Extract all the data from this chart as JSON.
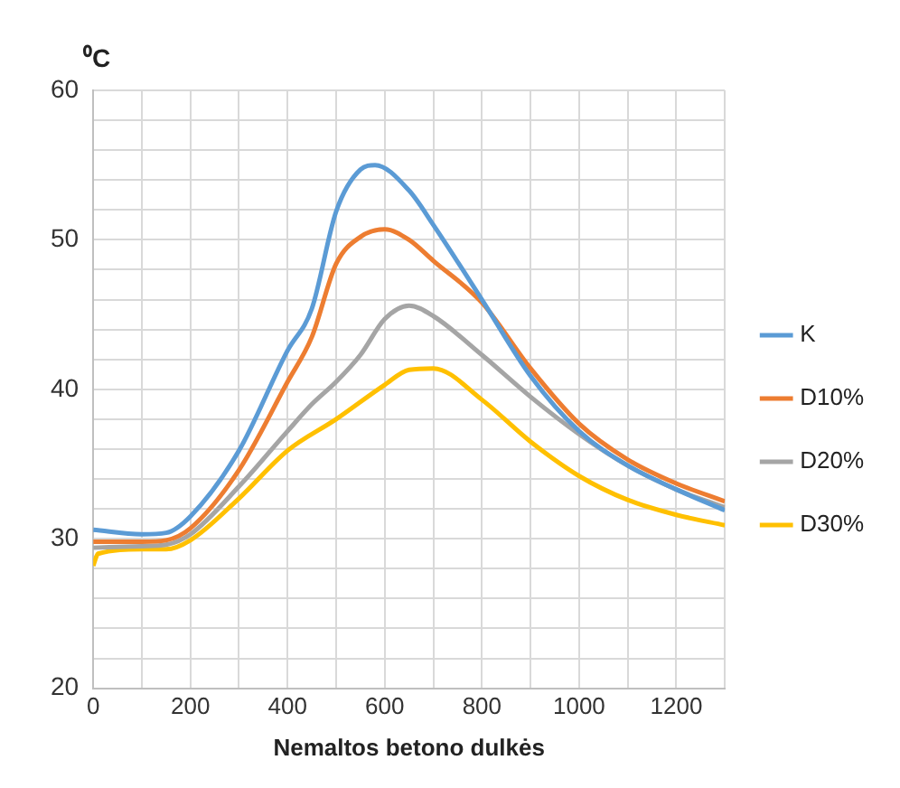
{
  "chart_data": {
    "type": "line",
    "xlabel": "Nemaltos betono dulkės",
    "ylabel": "⁰C",
    "x": [
      0,
      100,
      150,
      200,
      300,
      400,
      450,
      500,
      550,
      600,
      650,
      700,
      800,
      900,
      1000,
      1100,
      1200,
      1300
    ],
    "series": [
      {
        "name": "K",
        "color": "#5b9bd5",
        "x": [
          0,
          100,
          150,
          200,
          300,
          400,
          450,
          500,
          550,
          580,
          650,
          700,
          800,
          900,
          1000,
          1100,
          1200,
          1300
        ],
        "values": [
          30.6,
          30.3,
          30.4,
          31.5,
          35.9,
          42.6,
          45.4,
          51.9,
          54.7,
          55.0,
          53.3,
          51.0,
          46.0,
          40.9,
          37.2,
          34.9,
          33.3,
          31.9
        ]
      },
      {
        "name": "D10%",
        "color": "#ed7d31",
        "values": [
          29.8,
          29.8,
          29.9,
          30.7,
          34.6,
          40.5,
          43.5,
          48.4,
          50.2,
          50.7,
          50.0,
          48.6,
          45.8,
          41.4,
          37.7,
          35.3,
          33.7,
          32.5
        ]
      },
      {
        "name": "D20%",
        "color": "#a5a5a5",
        "values": [
          29.4,
          29.5,
          29.6,
          30.3,
          33.5,
          37.2,
          39.0,
          40.5,
          42.3,
          44.7,
          45.6,
          44.9,
          42.3,
          39.5,
          37.0,
          34.9,
          33.3,
          32.1
        ]
      },
      {
        "name": "D30%",
        "color": "#ffc000",
        "x": [
          0,
          10,
          100,
          150,
          200,
          300,
          400,
          500,
          600,
          650,
          700,
          800,
          900,
          1000,
          1100,
          1200,
          1300
        ],
        "values": [
          28.2,
          29.0,
          29.3,
          29.3,
          29.9,
          32.7,
          35.9,
          38.0,
          40.3,
          41.3,
          41.4,
          39.3,
          36.5,
          34.2,
          32.6,
          31.6,
          30.9
        ]
      }
    ],
    "xlim": [
      0,
      1300
    ],
    "xticks": [
      0,
      {
        "value": 100,
        "label": null
      },
      200,
      {
        "value": 300,
        "label": null
      },
      400,
      {
        "value": 500,
        "label": null
      },
      600,
      {
        "value": 700,
        "label": null
      },
      800,
      {
        "value": 900,
        "label": null
      },
      1000,
      {
        "value": 1100,
        "label": null
      },
      1200,
      {
        "value": 1300,
        "label": null
      }
    ],
    "ylim": [
      20,
      60
    ],
    "yticks": [
      20,
      {
        "value": 22,
        "label": null
      },
      {
        "value": 24,
        "label": null
      },
      {
        "value": 26,
        "label": null
      },
      {
        "value": 28,
        "label": null
      },
      30,
      {
        "value": 32,
        "label": null
      },
      {
        "value": 34,
        "label": null
      },
      {
        "value": 36,
        "label": null
      },
      {
        "value": 38,
        "label": null
      },
      40,
      {
        "value": 42,
        "label": null
      },
      {
        "value": 44,
        "label": null
      },
      {
        "value": 46,
        "label": null
      },
      {
        "value": 48,
        "label": null
      },
      50,
      {
        "value": 52,
        "label": null
      },
      {
        "value": 54,
        "label": null
      },
      {
        "value": 56,
        "label": null
      },
      {
        "value": 58,
        "label": null
      },
      60
    ],
    "grid": true,
    "legend": "right",
    "marker": "none",
    "line_style": "solid"
  }
}
